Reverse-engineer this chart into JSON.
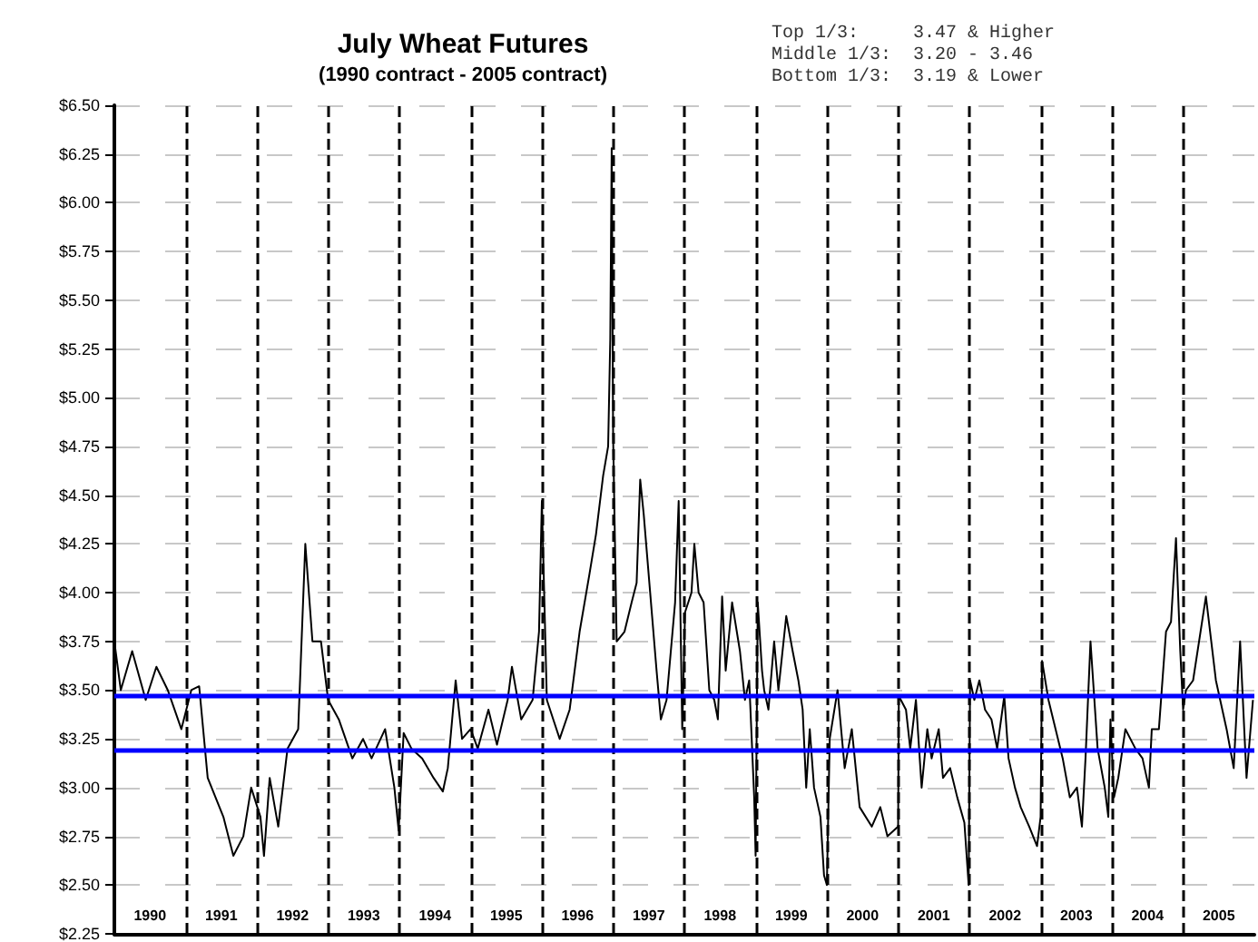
{
  "chart_data": {
    "type": "line",
    "title": "July Wheat Futures",
    "subtitle": "(1990 contract - 2005 contract)",
    "annotations": [
      "Top 1/3:     3.47 & Higher",
      "Middle 1/3:  3.20 - 3.46",
      "Bottom 1/3:  3.19 & Lower"
    ],
    "xlim": [
      1989.5,
      2005.5
    ],
    "xticks": [
      1990,
      1991,
      1992,
      1993,
      1994,
      1995,
      1996,
      1997,
      1998,
      1999,
      2000,
      2001,
      2002,
      2003,
      2004,
      2005
    ],
    "ylim": [
      2.25,
      6.5
    ],
    "yticks": [
      {
        "value": 2.25,
        "label": "$2.25"
      },
      {
        "value": 2.5,
        "label": "$2.50"
      },
      {
        "value": 2.75,
        "label": "$2.75"
      },
      {
        "value": 3.0,
        "label": "$3.00"
      },
      {
        "value": 3.25,
        "label": "$3.25"
      },
      {
        "value": 3.5,
        "label": "$3.50"
      },
      {
        "value": 3.75,
        "label": "$3.75"
      },
      {
        "value": 4.0,
        "label": "$4.00"
      },
      {
        "value": 4.25,
        "label": "$4.25"
      },
      {
        "value": 4.5,
        "label": "$4.50"
      },
      {
        "value": 4.75,
        "label": "$4.75"
      },
      {
        "value": 5.0,
        "label": "$5.00"
      },
      {
        "value": 5.25,
        "label": "$5.25"
      },
      {
        "value": 5.5,
        "label": "$5.50"
      },
      {
        "value": 5.75,
        "label": "$5.75"
      },
      {
        "value": 6.0,
        "label": "$6.00"
      },
      {
        "value": 6.25,
        "label": "$6.25"
      },
      {
        "value": 6.5,
        "label": "$6.50"
      }
    ],
    "grid": "y",
    "marker": "none",
    "line_style": "solid",
    "ref_lines": [
      {
        "axis": "x",
        "value": 1990.5,
        "color": "#000000",
        "line_style": "dashed"
      },
      {
        "axis": "x",
        "value": 1991.5,
        "color": "#000000",
        "line_style": "dashed"
      },
      {
        "axis": "x",
        "value": 1992.5,
        "color": "#000000",
        "line_style": "dashed"
      },
      {
        "axis": "x",
        "value": 1993.5,
        "color": "#000000",
        "line_style": "dashed"
      },
      {
        "axis": "x",
        "value": 1994.5,
        "color": "#000000",
        "line_style": "dashed"
      },
      {
        "axis": "x",
        "value": 1995.5,
        "color": "#000000",
        "line_style": "dashed"
      },
      {
        "axis": "x",
        "value": 1996.5,
        "color": "#000000",
        "line_style": "dashed"
      },
      {
        "axis": "x",
        "value": 1997.5,
        "color": "#000000",
        "line_style": "dashed"
      },
      {
        "axis": "x",
        "value": 1998.5,
        "color": "#000000",
        "line_style": "dashed"
      },
      {
        "axis": "x",
        "value": 1999.5,
        "color": "#000000",
        "line_style": "dashed"
      },
      {
        "axis": "x",
        "value": 2000.5,
        "color": "#000000",
        "line_style": "dashed"
      },
      {
        "axis": "x",
        "value": 2001.5,
        "color": "#000000",
        "line_style": "dashed"
      },
      {
        "axis": "x",
        "value": 2002.5,
        "color": "#000000",
        "line_style": "dashed"
      },
      {
        "axis": "x",
        "value": 2003.5,
        "color": "#000000",
        "line_style": "dashed"
      },
      {
        "axis": "x",
        "value": 2004.5,
        "color": "#000000",
        "line_style": "dashed"
      },
      {
        "axis": "y",
        "value": 3.47,
        "color": "#0000ff",
        "line_style": "solid"
      },
      {
        "axis": "y",
        "value": 3.19,
        "color": "#0000ff",
        "line_style": "solid"
      }
    ],
    "series": [
      {
        "color": "#000000",
        "x": [
          1989.5,
          1989.59,
          1989.75,
          1989.94,
          1990.09,
          1990.25,
          1990.44,
          1990.58,
          1990.69,
          1990.81,
          1991.03,
          1991.17,
          1991.31,
          1991.42,
          1991.55,
          1991.6,
          1991.68,
          1991.8,
          1991.93,
          1992.08,
          1992.18,
          1992.28,
          1992.4,
          1992.5,
          1992.65,
          1992.84,
          1992.99,
          1993.11,
          1993.3,
          1993.43,
          1993.49,
          1993.56,
          1993.67,
          1993.82,
          1993.98,
          1994.11,
          1994.18,
          1994.29,
          1994.38,
          1994.5,
          1994.6,
          1994.75,
          1994.87,
          1995.02,
          1995.08,
          1995.21,
          1995.37,
          1995.46,
          1995.5,
          1995.57,
          1995.66,
          1995.75,
          1995.89,
          1996.03,
          1996.17,
          1996.26,
          1996.36,
          1996.43,
          1996.46,
          1996.48,
          1996.5,
          1996.55,
          1996.66,
          1996.76,
          1996.83,
          1996.88,
          1996.93,
          1997.02,
          1997.11,
          1997.17,
          1997.25,
          1997.37,
          1997.42,
          1997.47,
          1997.51,
          1997.6,
          1997.64,
          1997.7,
          1997.77,
          1997.85,
          1997.92,
          1997.97,
          1998.03,
          1998.08,
          1998.17,
          1998.28,
          1998.35,
          1998.41,
          1998.48,
          1998.5,
          1998.53,
          1998.59,
          1998.62,
          1998.68,
          1998.76,
          1998.82,
          1998.93,
          1999.02,
          1999.1,
          1999.16,
          1999.21,
          1999.26,
          1999.32,
          1999.41,
          1999.46,
          1999.5,
          1999.54,
          1999.65,
          1999.75,
          1999.85,
          1999.96,
          2000.13,
          2000.25,
          2000.35,
          2000.5,
          2000.51,
          2000.61,
          2000.67,
          2000.75,
          2000.83,
          2000.91,
          2000.97,
          2001.07,
          2001.13,
          2001.23,
          2001.33,
          2001.43,
          2001.49,
          2001.51,
          2001.57,
          2001.64,
          2001.72,
          2001.81,
          2001.89,
          2001.99,
          2002.05,
          2002.14,
          2002.22,
          2002.34,
          2002.45,
          2002.5,
          2002.52,
          2002.61,
          2002.71,
          2002.81,
          2002.91,
          2003.01,
          2003.08,
          2003.13,
          2003.2,
          2003.3,
          2003.4,
          2003.45,
          2003.48,
          2003.53,
          2003.59,
          2003.69,
          2003.83,
          2003.93,
          2004.02,
          2004.06,
          2004.16,
          2004.26,
          2004.33,
          2004.4,
          2004.46,
          2004.5,
          2004.54,
          2004.64,
          2004.82,
          2004.96,
          2005.11,
          2005.21,
          2005.3,
          2005.39,
          2005.48
        ],
        "values": [
          3.75,
          3.5,
          3.7,
          3.45,
          3.62,
          3.5,
          3.3,
          3.5,
          3.52,
          3.05,
          2.85,
          2.65,
          2.75,
          3.0,
          2.85,
          2.65,
          3.05,
          2.8,
          3.2,
          3.3,
          4.25,
          3.75,
          3.75,
          3.45,
          3.35,
          3.15,
          3.25,
          3.15,
          3.3,
          3.0,
          2.78,
          3.28,
          3.2,
          3.15,
          3.05,
          2.98,
          3.1,
          3.55,
          3.25,
          3.3,
          3.2,
          3.4,
          3.22,
          3.45,
          3.62,
          3.35,
          3.45,
          3.8,
          4.47,
          3.45,
          3.35,
          3.25,
          3.4,
          3.8,
          4.1,
          4.3,
          4.6,
          4.75,
          5.3,
          6.28,
          4.8,
          3.75,
          3.8,
          3.95,
          4.05,
          4.58,
          4.4,
          4.0,
          3.6,
          3.35,
          3.45,
          3.95,
          4.47,
          3.3,
          3.9,
          4.0,
          4.25,
          4.0,
          3.95,
          3.5,
          3.45,
          3.35,
          3.98,
          3.6,
          3.95,
          3.7,
          3.45,
          3.55,
          2.95,
          2.65,
          3.95,
          3.6,
          3.5,
          3.4,
          3.75,
          3.5,
          3.88,
          3.7,
          3.55,
          3.4,
          3.0,
          3.3,
          3.0,
          2.85,
          2.55,
          2.5,
          3.25,
          3.5,
          3.1,
          3.3,
          2.9,
          2.8,
          2.9,
          2.75,
          2.8,
          3.47,
          3.4,
          3.2,
          3.45,
          3.0,
          3.3,
          3.15,
          3.3,
          3.05,
          3.1,
          2.95,
          2.82,
          2.5,
          3.55,
          3.45,
          3.55,
          3.4,
          3.35,
          3.2,
          3.47,
          3.15,
          3.0,
          2.9,
          2.8,
          2.7,
          2.85,
          3.65,
          3.45,
          3.3,
          3.15,
          2.95,
          3.0,
          2.8,
          3.15,
          3.75,
          3.2,
          3.0,
          2.85,
          3.35,
          2.95,
          3.05,
          3.3,
          3.2,
          3.15,
          3.0,
          3.3,
          3.3,
          3.8,
          3.85,
          4.28,
          3.7,
          3.4,
          3.5,
          3.55,
          3.98,
          3.55,
          3.3,
          3.1,
          3.75,
          3.05,
          3.45
        ]
      }
    ]
  }
}
